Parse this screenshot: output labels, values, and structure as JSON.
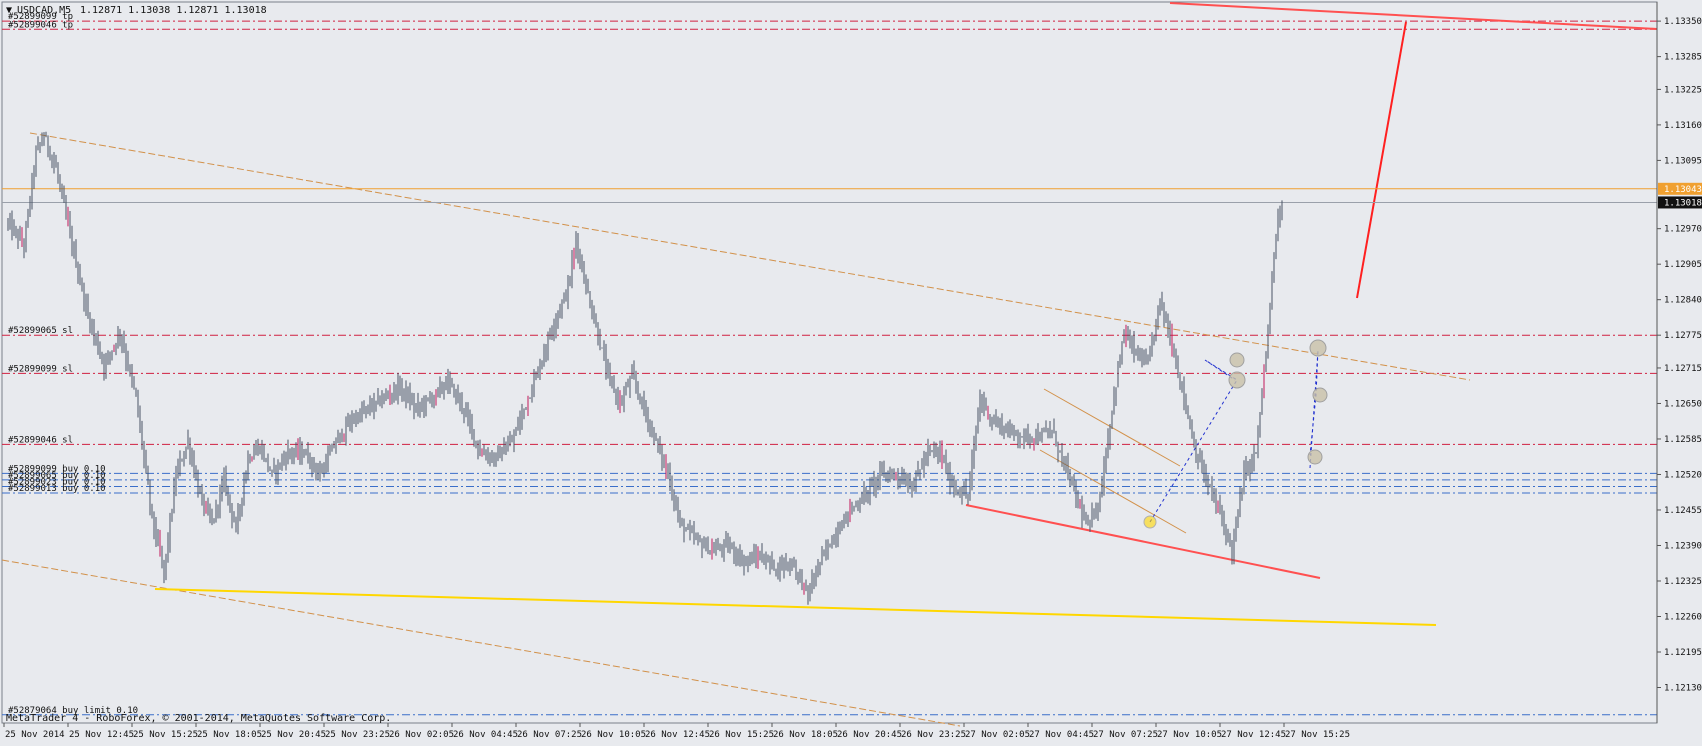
{
  "header": {
    "symbol_label": "USDCAD,M5",
    "ohlc_text": "1.12871 1.13038 1.12871 1.13018"
  },
  "footer": {
    "copyright": "MetaTrader 4 - RoboForex, © 2001-2014, MetaQuotes Software Corp."
  },
  "colors": {
    "background": "#e8eaee",
    "candles": "#4a5466",
    "bull_accent": "#c2185b",
    "order_sl_tp": "#d02040",
    "order_entry": "#3a6ec9",
    "channel": "#d2914a",
    "support_line": "#ffd700",
    "trend_red": "#ff3030",
    "ask_line": "#f0a030",
    "bid_line": "#9aa0aa",
    "price_tag_ask": "#f0a030",
    "price_tag_bid": "#111111"
  },
  "chart_data": {
    "type": "candlestick",
    "symbol": "USDCAD",
    "timeframe": "M5",
    "ylim": [
      1.12065,
      1.13385
    ],
    "y_ticks": [
      "1.13350",
      "1.13285",
      "1.13225",
      "1.13160",
      "1.13095",
      "1.13043",
      "1.13018",
      "1.12970",
      "1.12905",
      "1.12840",
      "1.12775",
      "1.12715",
      "1.12650",
      "1.12585",
      "1.12520",
      "1.12455",
      "1.12390",
      "1.12325",
      "1.12260",
      "1.12195",
      "1.12130"
    ],
    "x_ticks": [
      "25 Nov 2014",
      "25 Nov 12:45",
      "25 Nov 15:25",
      "25 Nov 18:05",
      "25 Nov 20:45",
      "25 Nov 23:25",
      "26 Nov 02:05",
      "26 Nov 04:45",
      "26 Nov 07:25",
      "26 Nov 10:05",
      "26 Nov 12:45",
      "26 Nov 15:25",
      "26 Nov 18:05",
      "26 Nov 20:45",
      "26 Nov 23:25",
      "27 Nov 02:05",
      "27 Nov 04:45",
      "27 Nov 07:25",
      "27 Nov 10:05",
      "27 Nov 12:45",
      "27 Nov 15:25"
    ],
    "bars_per_label": 32,
    "ask_price": 1.13043,
    "bid_price": 1.13018,
    "anchors": [
      [
        0,
        1.1298
      ],
      [
        8,
        1.1294
      ],
      [
        14,
        1.1311
      ],
      [
        18,
        1.1314
      ],
      [
        24,
        1.1308
      ],
      [
        32,
        1.1294
      ],
      [
        40,
        1.1281
      ],
      [
        48,
        1.1272
      ],
      [
        56,
        1.1278
      ],
      [
        64,
        1.1266
      ],
      [
        72,
        1.1244
      ],
      [
        78,
        1.1234
      ],
      [
        84,
        1.1252
      ],
      [
        90,
        1.1258
      ],
      [
        96,
        1.1248
      ],
      [
        102,
        1.1243
      ],
      [
        108,
        1.1251
      ],
      [
        114,
        1.1242
      ],
      [
        120,
        1.1255
      ],
      [
        126,
        1.1257
      ],
      [
        132,
        1.1252
      ],
      [
        140,
        1.1256
      ],
      [
        148,
        1.1256
      ],
      [
        156,
        1.1252
      ],
      [
        164,
        1.1258
      ],
      [
        172,
        1.1262
      ],
      [
        180,
        1.1264
      ],
      [
        188,
        1.1266
      ],
      [
        196,
        1.1268
      ],
      [
        204,
        1.1264
      ],
      [
        212,
        1.1266
      ],
      [
        220,
        1.1269
      ],
      [
        228,
        1.1264
      ],
      [
        236,
        1.1256
      ],
      [
        244,
        1.1255
      ],
      [
        252,
        1.1258
      ],
      [
        260,
        1.1266
      ],
      [
        266,
        1.1272
      ],
      [
        272,
        1.1279
      ],
      [
        280,
        1.1286
      ],
      [
        284,
        1.1295
      ],
      [
        288,
        1.1288
      ],
      [
        294,
        1.1279
      ],
      [
        300,
        1.127
      ],
      [
        306,
        1.1265
      ],
      [
        312,
        1.127
      ],
      [
        318,
        1.1264
      ],
      [
        324,
        1.1258
      ],
      [
        330,
        1.1252
      ],
      [
        336,
        1.1243
      ],
      [
        344,
        1.124
      ],
      [
        352,
        1.1238
      ],
      [
        360,
        1.1239
      ],
      [
        368,
        1.1236
      ],
      [
        376,
        1.1237
      ],
      [
        384,
        1.1235
      ],
      [
        392,
        1.1236
      ],
      [
        400,
        1.123
      ],
      [
        406,
        1.1236
      ],
      [
        412,
        1.124
      ],
      [
        420,
        1.1245
      ],
      [
        428,
        1.1248
      ],
      [
        436,
        1.1252
      ],
      [
        444,
        1.1252
      ],
      [
        452,
        1.125
      ],
      [
        460,
        1.1256
      ],
      [
        466,
        1.1256
      ],
      [
        472,
        1.125
      ],
      [
        480,
        1.1248
      ],
      [
        486,
        1.1266
      ],
      [
        492,
        1.1262
      ],
      [
        500,
        1.126
      ],
      [
        508,
        1.1259
      ],
      [
        516,
        1.1259
      ],
      [
        522,
        1.126
      ],
      [
        528,
        1.1254
      ],
      [
        534,
        1.1248
      ],
      [
        540,
        1.1242
      ],
      [
        546,
        1.1248
      ],
      [
        552,
        1.1264
      ],
      [
        558,
        1.1278
      ],
      [
        564,
        1.1274
      ],
      [
        570,
        1.1272
      ],
      [
        576,
        1.1284
      ],
      [
        582,
        1.1276
      ],
      [
        588,
        1.1266
      ],
      [
        594,
        1.1256
      ],
      [
        600,
        1.125
      ],
      [
        606,
        1.1245
      ],
      [
        612,
        1.1238
      ],
      [
        618,
        1.1252
      ],
      [
        624,
        1.1256
      ],
      [
        630,
        1.1278
      ],
      [
        634,
        1.1296
      ],
      [
        637,
        1.13018
      ]
    ]
  },
  "orders": [
    {
      "label": "#52899099 tp",
      "price": 1.1335,
      "kind": "sltp"
    },
    {
      "label": "#52899046 tp",
      "price": 1.13335,
      "kind": "sltp"
    },
    {
      "label": "#52899065 sl",
      "price": 1.12775,
      "kind": "sltp"
    },
    {
      "label": "#52899099 sl",
      "price": 1.12705,
      "kind": "sltp"
    },
    {
      "label": "#52899046 sl",
      "price": 1.12575,
      "kind": "sltp"
    },
    {
      "label": "#52899099 buy 0.10",
      "price": 1.12522,
      "kind": "entry"
    },
    {
      "label": "#52899065 buy 0.10",
      "price": 1.1251,
      "kind": "entry"
    },
    {
      "label": "#52899023 buy 0.10",
      "price": 1.12498,
      "kind": "entry"
    },
    {
      "label": "#52899013 buy 0.10",
      "price": 1.12486,
      "kind": "entry"
    },
    {
      "label": "#52879064 buy limit 0.10",
      "price": 1.1208,
      "kind": "entry"
    }
  ]
}
